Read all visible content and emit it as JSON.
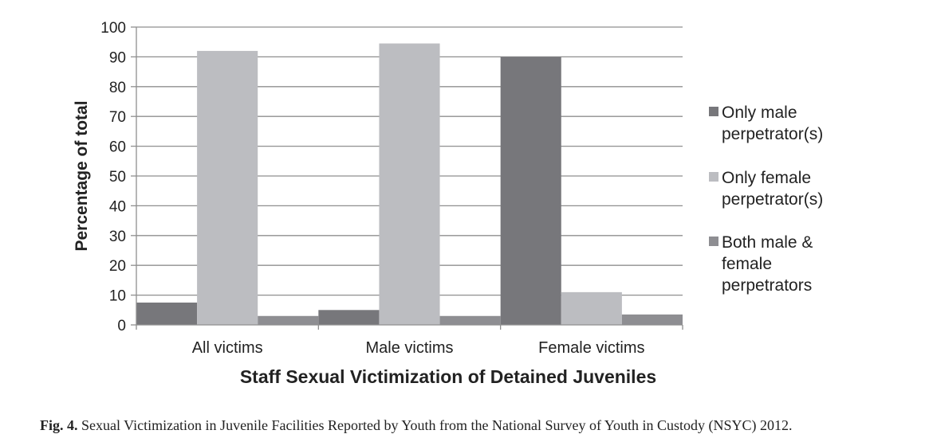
{
  "chart_data": {
    "type": "bar",
    "title": "",
    "xlabel": "Staff Sexual Victimization of Detained Juveniles",
    "ylabel": "Percentage of total",
    "ylim": [
      0,
      100
    ],
    "yticks": [
      0,
      10,
      20,
      30,
      40,
      50,
      60,
      70,
      80,
      90,
      100
    ],
    "grid": true,
    "legend_position": "right",
    "categories": [
      "All victims",
      "Male victims",
      "Female victims"
    ],
    "series": [
      {
        "name": "Only male perpetrator(s)",
        "values": [
          7.5,
          5,
          90
        ],
        "color": "#77777b"
      },
      {
        "name": "Only female perpetrator(s)",
        "values": [
          92,
          94.5,
          11
        ],
        "color": "#bcbdc1"
      },
      {
        "name": "Both male & female perpetrators",
        "values": [
          3,
          3,
          3.5
        ],
        "color": "#8e8e92"
      }
    ]
  },
  "legend": [
    {
      "lines": [
        "Only male",
        "perpetrator(s)"
      ]
    },
    {
      "lines": [
        "Only female",
        "perpetrator(s)"
      ]
    },
    {
      "lines": [
        "Both male &",
        "female",
        "perpetrators"
      ]
    }
  ],
  "caption": {
    "label": "Fig. 4.",
    "text": " Sexual Victimization in Juvenile Facilities Reported by Youth from the National Survey of Youth in Custody (NSYC) 2012."
  }
}
